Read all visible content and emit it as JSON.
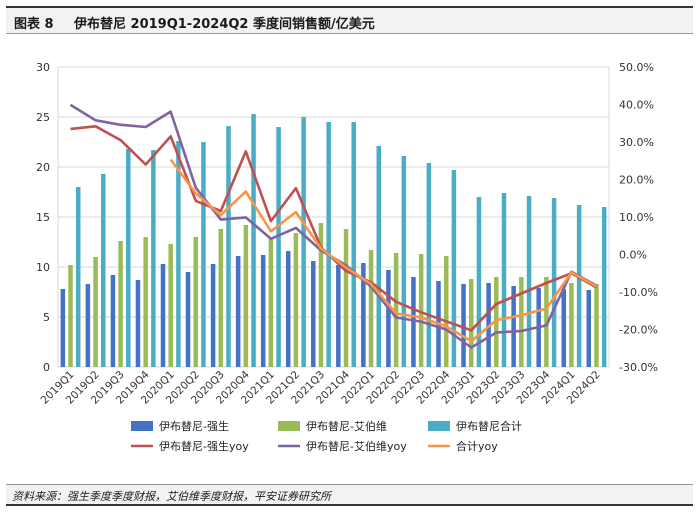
{
  "header": {
    "figure_label": "图表 8",
    "title": "伊布替尼 2019Q1-2024Q2 季度间销售额/亿美元"
  },
  "footer": {
    "source": "资料来源：强生季度季度财报，艾伯维季度财报，平安证券研究所"
  },
  "colors": {
    "js_bar": "#4472c4",
    "abbv_bar": "#9bbb59",
    "total_bar": "#4bacc6",
    "js_yoy": "#c0504d",
    "abbv_yoy": "#8064a2",
    "total_yoy": "#f79646",
    "grid": "#d9d9d9",
    "axis_text": "#333333"
  },
  "chart_data": {
    "type": "bar",
    "categories": [
      "2019Q1",
      "2019Q2",
      "2019Q3",
      "2019Q4",
      "2020Q1",
      "2020Q2",
      "2020Q3",
      "2020Q4",
      "2021Q1",
      "2021Q2",
      "2021Q3",
      "2021Q4",
      "2022Q1",
      "2022Q2",
      "2022Q3",
      "2022Q4",
      "2023Q1",
      "2023Q2",
      "2023Q3",
      "2023Q4",
      "2024Q1",
      "2024Q2"
    ],
    "y_left": {
      "ylim": [
        0,
        30
      ],
      "ticks": [
        "0",
        "5",
        "10",
        "15",
        "20",
        "25",
        "30"
      ]
    },
    "y_right": {
      "ylim": [
        -30,
        50
      ],
      "ticks": [
        "-30.0%",
        "-20.0%",
        "-10.0%",
        "0.0%",
        "10.0%",
        "20.0%",
        "30.0%",
        "40.0%",
        "50.0%"
      ]
    },
    "bar_series": [
      {
        "name": "伊布替尼-强生",
        "axis": "left",
        "values": [
          7.8,
          8.3,
          9.2,
          8.7,
          10.3,
          9.5,
          10.3,
          11.1,
          11.2,
          11.6,
          10.6,
          10.2,
          10.4,
          9.7,
          9.0,
          8.6,
          8.3,
          8.4,
          8.1,
          7.9,
          7.8,
          7.7
        ]
      },
      {
        "name": "伊布替尼-艾伯维",
        "axis": "left",
        "values": [
          10.2,
          11.0,
          12.6,
          13.0,
          12.3,
          13.0,
          13.8,
          14.2,
          12.8,
          13.4,
          14.4,
          13.8,
          11.7,
          11.4,
          11.3,
          11.1,
          8.8,
          9.0,
          9.0,
          9.0,
          8.4,
          8.3
        ]
      },
      {
        "name": "伊布替尼合计",
        "axis": "left",
        "values": [
          18.0,
          19.3,
          21.8,
          21.7,
          22.6,
          22.5,
          24.1,
          25.3,
          24.0,
          25.0,
          24.5,
          24.5,
          22.1,
          21.1,
          20.4,
          19.7,
          17.0,
          17.4,
          17.1,
          16.9,
          16.2,
          16.0
        ]
      }
    ],
    "line_series": [
      {
        "name": "伊布替尼-强生yoy",
        "axis": "right",
        "values": [
          33.5,
          34.2,
          30.5,
          24.0,
          31.5,
          14.3,
          11.6,
          27.5,
          8.9,
          17.7,
          1.9,
          -4.4,
          -7.4,
          -12.6,
          -15.4,
          -17.8,
          -20.2,
          -13.2,
          -10.4,
          -7.6,
          -5.0,
          -8.8
        ]
      },
      {
        "name": "伊布替尼-艾伯维yoy",
        "axis": "right",
        "values": [
          39.9,
          35.8,
          34.6,
          34.0,
          38.1,
          17.8,
          9.3,
          9.9,
          4.2,
          7.1,
          1.1,
          -2.9,
          -8.6,
          -16.8,
          -17.9,
          -20.0,
          -24.8,
          -20.8,
          -20.4,
          -18.9,
          -4.6,
          -8.3
        ]
      },
      {
        "name": "合计yoy",
        "axis": "right",
        "values": [
          null,
          null,
          null,
          null,
          25.3,
          16.3,
          10.5,
          16.8,
          6.2,
          11.3,
          1.6,
          -3.5,
          -7.9,
          -15.7,
          -16.8,
          -19.2,
          -23.1,
          -17.5,
          -16.2,
          -14.4,
          -4.8,
          -8.5
        ]
      }
    ],
    "legend_position": "bottom",
    "grid": true
  }
}
